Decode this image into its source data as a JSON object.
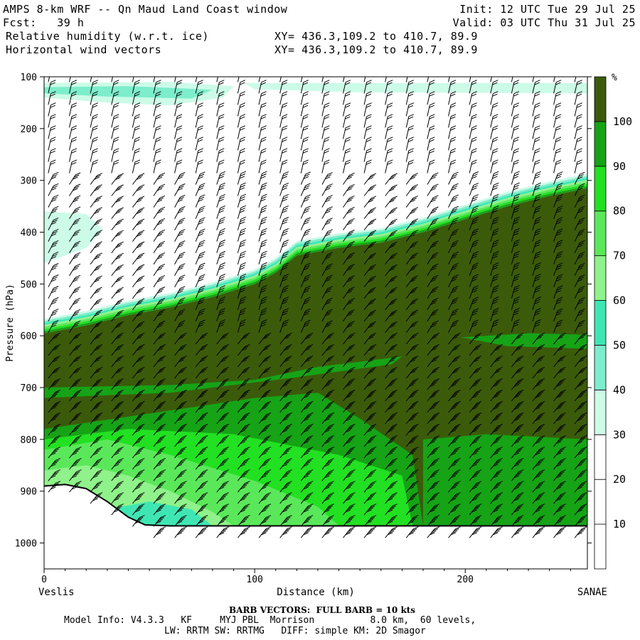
{
  "header": {
    "title": "AMPS 8-km WRF -- Qn Maud Land Coast window",
    "init": "Init: 12 UTC Tue 29 Jul 25",
    "fcst": "Fcst:   39 h",
    "valid": "Valid: 03 UTC Thu 31 Jul 25",
    "field1": "Relative humidity (w.r.t. ice)",
    "field1_xy": "XY= 436.3,109.2 to 410.7, 89.9",
    "field2": "Horizontal wind vectors",
    "field2_xy": "XY= 436.3,109.2 to 410.7, 89.9"
  },
  "footer": {
    "barb_note": "BARB VECTORS:  FULL BARB = 10 kts",
    "model_line1": "Model Info: V4.3.3   KF     MYJ PBL  Morrison          8.0 km,  60 levels,",
    "model_line2": "LW: RRTM SW: RRTMG   DIFF: simple KM: 2D Smagor"
  },
  "colors": {
    "c30_40": "#ccfbe8",
    "c40_50": "#7dedcb",
    "c50_60": "#3fe6b4",
    "c60_70": "#8ff28a",
    "c70_80": "#5ae85a",
    "c80_90": "#22e022",
    "c90_100": "#16a316",
    "c100": "#3b5b0b",
    "terrain_line": "#000000"
  },
  "chart_data": {
    "type": "heatmap",
    "title": "Relative humidity (w.r.t. ice)",
    "xlabel": "Distance (km)",
    "ylabel": "Pressure (hPa)",
    "x_range": [
      0,
      258
    ],
    "y_range": [
      1050,
      100
    ],
    "x_ticks": [
      0,
      100,
      200
    ],
    "y_ticks": [
      100,
      200,
      300,
      400,
      500,
      600,
      700,
      800,
      900,
      1000
    ],
    "x_start_label": "Veslis",
    "x_end_label": "SANAE",
    "colorbar": {
      "unit": "%",
      "levels": [
        10,
        20,
        30,
        40,
        50,
        60,
        70,
        80,
        90,
        100
      ],
      "bins": [
        {
          "range": [
            0,
            10
          ],
          "color": "#ffffff"
        },
        {
          "range": [
            10,
            20
          ],
          "color": "#ffffff"
        },
        {
          "range": [
            20,
            30
          ],
          "color": "#ffffff"
        },
        {
          "range": [
            30,
            40
          ],
          "color": "#ccfbe8"
        },
        {
          "range": [
            40,
            50
          ],
          "color": "#7dedcb"
        },
        {
          "range": [
            50,
            60
          ],
          "color": "#3fe6b4"
        },
        {
          "range": [
            60,
            70
          ],
          "color": "#8ff28a"
        },
        {
          "range": [
            70,
            80
          ],
          "color": "#5ae85a"
        },
        {
          "range": [
            80,
            90
          ],
          "color": "#22e022"
        },
        {
          "range": [
            90,
            100
          ],
          "color": "#16a316"
        },
        {
          "range": [
            100,
            110
          ],
          "color": "#3b5b0b"
        }
      ]
    },
    "moist_layer_top": [
      {
        "x": 0,
        "p": 595
      },
      {
        "x": 20,
        "p": 580
      },
      {
        "x": 40,
        "p": 560
      },
      {
        "x": 60,
        "p": 545
      },
      {
        "x": 80,
        "p": 525
      },
      {
        "x": 100,
        "p": 500
      },
      {
        "x": 110,
        "p": 478
      },
      {
        "x": 120,
        "p": 445
      },
      {
        "x": 140,
        "p": 430
      },
      {
        "x": 160,
        "p": 420
      },
      {
        "x": 180,
        "p": 400
      },
      {
        "x": 200,
        "p": 375
      },
      {
        "x": 220,
        "p": 350
      },
      {
        "x": 240,
        "p": 330
      },
      {
        "x": 258,
        "p": 315
      }
    ],
    "terrain_surface": [
      {
        "x": 0,
        "p": 890
      },
      {
        "x": 10,
        "p": 887
      },
      {
        "x": 20,
        "p": 895
      },
      {
        "x": 30,
        "p": 920
      },
      {
        "x": 40,
        "p": 950
      },
      {
        "x": 48,
        "p": 965
      },
      {
        "x": 60,
        "p": 967
      },
      {
        "x": 258,
        "p": 967
      }
    ],
    "wind_barbs": "Horizontal wind vectors at model grid points (full barb = 10 kts)"
  }
}
